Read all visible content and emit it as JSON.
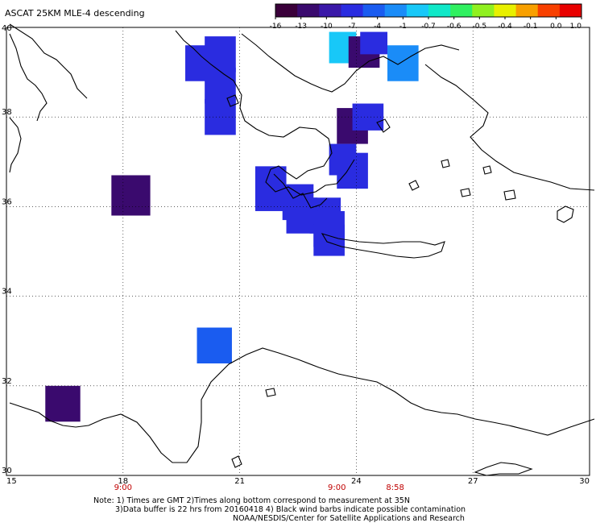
{
  "title": "ASCAT 25KM MLE-4 descending",
  "colorbar": {
    "labels": [
      "-16",
      "-13",
      "-10",
      "-7",
      "-4",
      "-1",
      "-0.7",
      "-0.6",
      "-0.5",
      "-0.4",
      "-0.1",
      "0.0",
      "1.0"
    ],
    "colors": [
      "#3a003a",
      "#3a0a6e",
      "#3a18a8",
      "#2a2ce0",
      "#1a5cf0",
      "#1a8cf8",
      "#18c8f8",
      "#10e8c8",
      "#30f060",
      "#90f020",
      "#e8f000",
      "#f8a000",
      "#f84000",
      "#e80000"
    ]
  },
  "map": {
    "lon_ticks": [
      "15",
      "18",
      "21",
      "24",
      "27",
      "30"
    ],
    "lat_ticks": [
      "40",
      "38",
      "36",
      "34",
      "32",
      "30"
    ],
    "lon_range": [
      15,
      30
    ],
    "lat_range": [
      30,
      40
    ]
  },
  "times": [
    {
      "label": "9:00",
      "lon": 18
    },
    {
      "label": "9:00",
      "lon": 23.5
    },
    {
      "label": "8:58",
      "lon": 25
    }
  ],
  "notes": [
    "Note: 1) Times are GMT 2)Times along bottom correspond to measurement at 35N",
    "3)Data buffer is 22 hrs from 20160418 4) Black wind barbs indicate possible contamination",
    "NOAA/NESDIS/Center for Satellite Applications and Research"
  ],
  "cells": [
    {
      "lon0": 19.6,
      "lon1": 20.4,
      "lat0": 38.8,
      "lat1": 39.6,
      "color": "#2a2ce0"
    },
    {
      "lon0": 20.1,
      "lon1": 20.9,
      "lat0": 39.0,
      "lat1": 39.8,
      "color": "#2a2ce0"
    },
    {
      "lon0": 20.1,
      "lon1": 20.9,
      "lat0": 38.3,
      "lat1": 39.1,
      "color": "#2a2ce0"
    },
    {
      "lon0": 20.1,
      "lon1": 20.9,
      "lat0": 37.6,
      "lat1": 38.4,
      "color": "#2a2ce0"
    },
    {
      "lon0": 17.7,
      "lon1": 18.7,
      "lat0": 35.8,
      "lat1": 36.7,
      "color": "#3a0a6e"
    },
    {
      "lon0": 16.0,
      "lon1": 16.9,
      "lat0": 31.2,
      "lat1": 32.0,
      "color": "#3a0a6e"
    },
    {
      "lon0": 19.9,
      "lon1": 20.8,
      "lat0": 32.5,
      "lat1": 33.3,
      "color": "#1a5cf0"
    },
    {
      "lon0": 23.3,
      "lon1": 24.0,
      "lat0": 39.2,
      "lat1": 39.9,
      "color": "#18c8f8"
    },
    {
      "lon0": 23.8,
      "lon1": 24.6,
      "lat0": 39.1,
      "lat1": 39.8,
      "color": "#3a0a6e"
    },
    {
      "lon0": 24.1,
      "lon1": 24.8,
      "lat0": 39.4,
      "lat1": 39.9,
      "color": "#2a2ce0"
    },
    {
      "lon0": 24.8,
      "lon1": 25.6,
      "lat0": 38.8,
      "lat1": 39.6,
      "color": "#1a8cf8"
    },
    {
      "lon0": 23.5,
      "lon1": 24.3,
      "lat0": 37.4,
      "lat1": 38.2,
      "color": "#3a0a6e"
    },
    {
      "lon0": 23.9,
      "lon1": 24.7,
      "lat0": 37.7,
      "lat1": 38.3,
      "color": "#2a2ce0"
    },
    {
      "lon0": 23.5,
      "lon1": 24.3,
      "lat0": 36.4,
      "lat1": 37.2,
      "color": "#2a2ce0"
    },
    {
      "lon0": 23.3,
      "lon1": 24.0,
      "lat0": 36.7,
      "lat1": 37.4,
      "color": "#2a2ce0"
    },
    {
      "lon0": 21.4,
      "lon1": 22.2,
      "lat0": 35.9,
      "lat1": 36.9,
      "color": "#2a2ce0"
    },
    {
      "lon0": 22.1,
      "lon1": 22.9,
      "lat0": 35.7,
      "lat1": 36.5,
      "color": "#2a2ce0"
    },
    {
      "lon0": 22.8,
      "lon1": 23.6,
      "lat0": 35.4,
      "lat1": 36.2,
      "color": "#2a2ce0"
    },
    {
      "lon0": 22.2,
      "lon1": 23.0,
      "lat0": 35.4,
      "lat1": 36.2,
      "color": "#2a2ce0"
    },
    {
      "lon0": 22.9,
      "lon1": 23.7,
      "lat0": 35.1,
      "lat1": 35.9,
      "color": "#2a2ce0"
    },
    {
      "lon0": 22.9,
      "lon1": 23.7,
      "lat0": 34.9,
      "lat1": 35.6,
      "color": "#2a2ce0"
    }
  ]
}
